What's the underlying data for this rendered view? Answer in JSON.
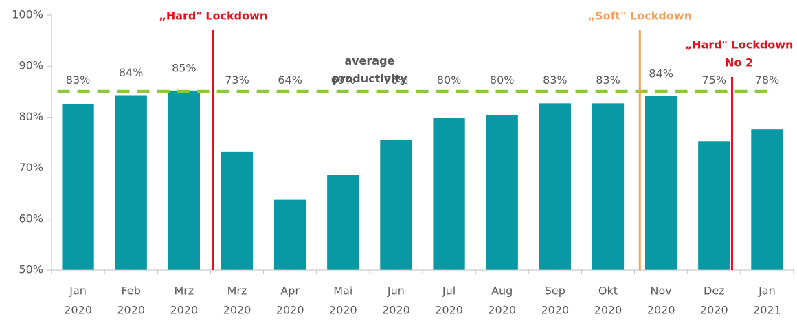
{
  "chart_data": {
    "type": "bar",
    "categories": [
      [
        "Jan",
        "2020"
      ],
      [
        "Feb",
        "2020"
      ],
      [
        "Mrz",
        "2020"
      ],
      [
        "Mrz",
        "2020"
      ],
      [
        "Apr",
        "2020"
      ],
      [
        "Mai",
        "2020"
      ],
      [
        "Jun",
        "2020"
      ],
      [
        "Jul",
        "2020"
      ],
      [
        "Aug",
        "2020"
      ],
      [
        "Sep",
        "2020"
      ],
      [
        "Okt",
        "2020"
      ],
      [
        "Nov",
        "2020"
      ],
      [
        "Dez",
        "2020"
      ],
      [
        "Jan",
        "2021"
      ]
    ],
    "values": [
      82.6,
      84.3,
      85.2,
      73.2,
      63.8,
      68.7,
      75.5,
      79.8,
      80.4,
      82.7,
      82.7,
      84.1,
      75.3,
      77.6
    ],
    "value_labels": [
      "83%",
      "84%",
      "85%",
      "73%",
      "64%",
      "69%",
      "76%",
      "80%",
      "80%",
      "83%",
      "83%",
      "84%",
      "75%",
      "78%"
    ],
    "color": "#0899a5",
    "ylim": [
      50,
      100
    ],
    "yticks": [
      {
        "value": 50,
        "label": "50%"
      },
      {
        "value": 60,
        "label": "60%"
      },
      {
        "value": 70,
        "label": "70%"
      },
      {
        "value": 80,
        "label": "80%"
      },
      {
        "value": 90,
        "label": "90%"
      },
      {
        "value": 100,
        "label": "100%"
      }
    ],
    "average": {
      "value": 85,
      "label": [
        "average",
        "productivity"
      ],
      "color": "#8dc63f"
    },
    "annotations": [
      {
        "text": [
          "„Hard\" Lockdown"
        ],
        "x": 3.05,
        "color": "#e3111b"
      },
      {
        "text": [
          "„Soft\" Lockdown"
        ],
        "x": 11.1,
        "color": "#f3a15c"
      },
      {
        "text": [
          "„Hard\" Lockdown",
          "No 2"
        ],
        "x": 12.84,
        "color": "#e3111b"
      }
    ]
  }
}
